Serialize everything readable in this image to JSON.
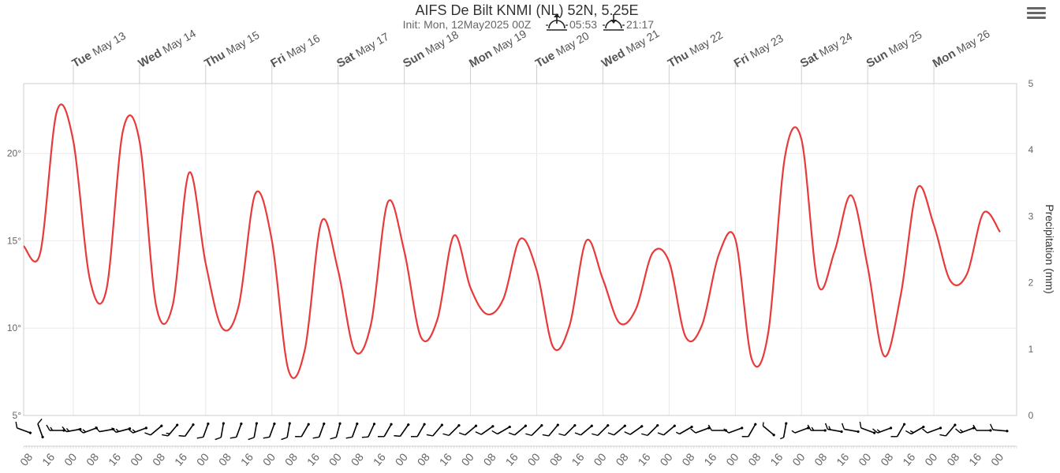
{
  "title": "AIFS De Bilt KNMI (NL) 52N, 5.25E",
  "subtitle": "Init: Mon, 12May2025 00Z",
  "sunrise": "05:53",
  "sunset": "21:17",
  "icons": {
    "menu": "hamburger-menu-icon",
    "sunrise": "sunrise-icon",
    "sunset": "sunset-icon"
  },
  "colors": {
    "temperature": "#e83a3a",
    "grid": "#e6e6e6",
    "wind": "#000000"
  },
  "chart_data": {
    "type": "line",
    "title": "AIFS De Bilt KNMI (NL) 52N, 5.25E",
    "subtitle": "Init: Mon, 12May2025 00Z",
    "x_start": "2025-05-12 06:00",
    "x_step_hours": 6,
    "x_end": "2025-05-27 06:00",
    "day_labels": [
      {
        "dow": "Tue",
        "date": "May 13"
      },
      {
        "dow": "Wed",
        "date": "May 14"
      },
      {
        "dow": "Thu",
        "date": "May 15"
      },
      {
        "dow": "Fri",
        "date": "May 16"
      },
      {
        "dow": "Sat",
        "date": "May 17"
      },
      {
        "dow": "Sun",
        "date": "May 18"
      },
      {
        "dow": "Mon",
        "date": "May 19"
      },
      {
        "dow": "Tue",
        "date": "May 20"
      },
      {
        "dow": "Wed",
        "date": "May 21"
      },
      {
        "dow": "Thu",
        "date": "May 22"
      },
      {
        "dow": "Fri",
        "date": "May 23"
      },
      {
        "dow": "Sat",
        "date": "May 24"
      },
      {
        "dow": "Sun",
        "date": "May 25"
      },
      {
        "dow": "Mon",
        "date": "May 26"
      }
    ],
    "hour_ticks": [
      "08",
      "16",
      "00"
    ],
    "y_left": {
      "ticks": [
        "5°",
        "10°",
        "15°",
        "20°"
      ],
      "min": 5,
      "max": 24
    },
    "y_right": {
      "label": "Precipitation (mm)",
      "ticks": [
        "0",
        "1",
        "2",
        "3",
        "4",
        "5"
      ],
      "min": 0,
      "max": 5
    },
    "grid": true,
    "series": [
      {
        "values": [
          14.7,
          14.3,
          22.4,
          20.7,
          12.8,
          12.2,
          21.3,
          20.7,
          11.3,
          11.3,
          18.9,
          13.7,
          10.0,
          11.3,
          17.7,
          15.0,
          7.6,
          8.8,
          16.1,
          13.3,
          8.7,
          10.3,
          17.2,
          14.4,
          9.5,
          10.5,
          15.3,
          12.3,
          10.8,
          11.7,
          15.1,
          13.3,
          8.9,
          10.2,
          15.0,
          12.8,
          10.3,
          11.1,
          14.3,
          13.8,
          9.5,
          10.2,
          14.2,
          15.1,
          8.2,
          9.8,
          19.8,
          20.8,
          12.5,
          14.4,
          17.6,
          13.5,
          8.4,
          11.9,
          18.0,
          15.9,
          12.7,
          13.1,
          16.6,
          15.5
        ],
        "color": "#e83a3a"
      }
    ],
    "wind_barbs": [
      {
        "dir": 290,
        "speed": 10
      },
      {
        "dir": 340,
        "speed": 10
      },
      {
        "dir": 270,
        "speed": 15
      },
      {
        "dir": 260,
        "speed": 15
      },
      {
        "dir": 250,
        "speed": 15
      },
      {
        "dir": 260,
        "speed": 10
      },
      {
        "dir": 255,
        "speed": 15
      },
      {
        "dir": 250,
        "speed": 15
      },
      {
        "dir": 230,
        "speed": 10
      },
      {
        "dir": 220,
        "speed": 15
      },
      {
        "dir": 215,
        "speed": 10
      },
      {
        "dir": 200,
        "speed": 10
      },
      {
        "dir": 190,
        "speed": 10
      },
      {
        "dir": 200,
        "speed": 10
      },
      {
        "dir": 190,
        "speed": 10
      },
      {
        "dir": 200,
        "speed": 10
      },
      {
        "dir": 190,
        "speed": 10
      },
      {
        "dir": 210,
        "speed": 10
      },
      {
        "dir": 200,
        "speed": 10
      },
      {
        "dir": 195,
        "speed": 10
      },
      {
        "dir": 200,
        "speed": 10
      },
      {
        "dir": 205,
        "speed": 10
      },
      {
        "dir": 210,
        "speed": 10
      },
      {
        "dir": 215,
        "speed": 10
      },
      {
        "dir": 210,
        "speed": 10
      },
      {
        "dir": 220,
        "speed": 10
      },
      {
        "dir": 225,
        "speed": 10
      },
      {
        "dir": 230,
        "speed": 10
      },
      {
        "dir": 235,
        "speed": 10
      },
      {
        "dir": 240,
        "speed": 10
      },
      {
        "dir": 230,
        "speed": 10
      },
      {
        "dir": 225,
        "speed": 10
      },
      {
        "dir": 220,
        "speed": 10
      },
      {
        "dir": 225,
        "speed": 10
      },
      {
        "dir": 230,
        "speed": 10
      },
      {
        "dir": 225,
        "speed": 10
      },
      {
        "dir": 230,
        "speed": 10
      },
      {
        "dir": 235,
        "speed": 10
      },
      {
        "dir": 225,
        "speed": 10
      },
      {
        "dir": 230,
        "speed": 10
      },
      {
        "dir": 240,
        "speed": 5
      },
      {
        "dir": 250,
        "speed": 10
      },
      {
        "dir": 270,
        "speed": 10
      },
      {
        "dir": 250,
        "speed": 10
      },
      {
        "dir": 210,
        "speed": 10
      },
      {
        "dir": 310,
        "speed": 5
      },
      {
        "dir": 190,
        "speed": 5
      },
      {
        "dir": 250,
        "speed": 5
      },
      {
        "dir": 270,
        "speed": 15
      },
      {
        "dir": 280,
        "speed": 15
      },
      {
        "dir": 280,
        "speed": 10
      },
      {
        "dir": 290,
        "speed": 10
      },
      {
        "dir": 250,
        "speed": 15
      },
      {
        "dir": 210,
        "speed": 10
      },
      {
        "dir": 240,
        "speed": 15
      },
      {
        "dir": 250,
        "speed": 10
      },
      {
        "dir": 220,
        "speed": 10
      },
      {
        "dir": 250,
        "speed": 15
      },
      {
        "dir": 270,
        "speed": 10
      },
      {
        "dir": 275,
        "speed": 10
      }
    ]
  }
}
